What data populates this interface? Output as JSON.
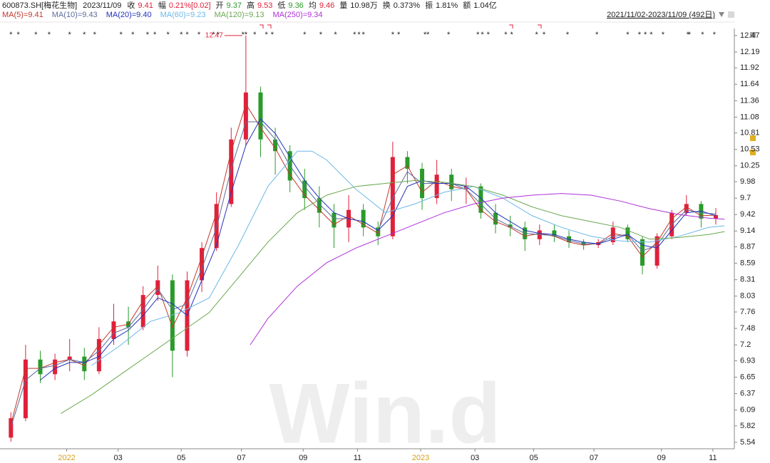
{
  "header": {
    "code": "600873.SH[梅花生物]",
    "date": "2023/11/09",
    "items": [
      {
        "label": "收",
        "value": "9.41",
        "color": "#e0203a"
      },
      {
        "label": "幅",
        "value": "0.21%[0.02]",
        "color": "#e0203a"
      },
      {
        "label": "开",
        "value": "9.37",
        "color": "#2a9a2a"
      },
      {
        "label": "高",
        "value": "9.53",
        "color": "#e0203a"
      },
      {
        "label": "低",
        "value": "9.36",
        "color": "#2a9a2a"
      },
      {
        "label": "均",
        "value": "9.46",
        "color": "#e0203a"
      },
      {
        "label": "量",
        "value": "10.98万",
        "color": "#222"
      },
      {
        "label": "换",
        "value": "0.373%",
        "color": "#222"
      },
      {
        "label": "振",
        "value": "1.81%",
        "color": "#222"
      },
      {
        "label": "额",
        "value": "1.04亿",
        "color": "#222"
      }
    ],
    "range": "2021/11/02-2023/11/09 (492日)"
  },
  "chart_data": {
    "type": "candlestick",
    "up_color": "#e0203a",
    "down_color": "#2a9a2a",
    "x": [
      5,
      15,
      25,
      35,
      45,
      55,
      65,
      75,
      85,
      95,
      105,
      115,
      125,
      135,
      145,
      155,
      165,
      175,
      185,
      195,
      205,
      215,
      225,
      235,
      245,
      255,
      265,
      275,
      285,
      295,
      305,
      315,
      325,
      335,
      345,
      355,
      365,
      375,
      385,
      395,
      405,
      415,
      425,
      435,
      445,
      455,
      465,
      475,
      485
    ],
    "open": [
      5.62,
      5.95,
      6.95,
      6.7,
      6.95,
      7.0,
      6.75,
      7.3,
      7.6,
      7.5,
      8.05,
      8.3,
      7.1,
      8.3,
      8.85,
      9.6,
      10.7,
      11.5,
      10.7,
      10.5,
      10.0,
      9.7,
      9.45,
      9.2,
      9.5,
      9.2,
      9.05,
      10.4,
      10.2,
      9.7,
      10.1,
      9.85,
      9.9,
      9.45,
      9.25,
      9.2,
      9.0,
      9.15,
      9.05,
      8.95,
      8.9,
      8.95,
      9.2,
      9.0,
      8.55,
      9.05,
      9.45,
      9.6,
      9.35
    ],
    "high": [
      6.05,
      7.2,
      7.1,
      7.05,
      7.3,
      7.15,
      7.5,
      7.9,
      7.85,
      8.2,
      8.55,
      8.4,
      8.45,
      8.95,
      9.8,
      10.9,
      12.47,
      11.6,
      10.9,
      10.6,
      10.2,
      9.9,
      9.6,
      9.75,
      9.6,
      9.3,
      10.66,
      10.5,
      10.3,
      10.35,
      10.2,
      10.05,
      9.95,
      9.6,
      9.4,
      9.3,
      9.25,
      9.25,
      9.15,
      9.0,
      9.0,
      9.3,
      9.25,
      9.05,
      9.1,
      9.5,
      9.75,
      9.65,
      9.53
    ],
    "low": [
      5.55,
      5.9,
      6.55,
      6.6,
      6.75,
      6.6,
      6.7,
      7.2,
      7.2,
      7.45,
      7.95,
      6.65,
      7.0,
      8.1,
      8.8,
      9.55,
      10.6,
      10.4,
      10.1,
      9.8,
      9.5,
      9.2,
      8.85,
      8.95,
      9.05,
      8.9,
      9.0,
      9.95,
      9.5,
      9.6,
      9.65,
      9.6,
      9.35,
      9.1,
      9.05,
      8.8,
      8.9,
      8.95,
      8.85,
      8.82,
      8.85,
      8.9,
      8.95,
      8.4,
      8.5,
      9.0,
      9.4,
      9.2,
      9.25
    ],
    "close": [
      5.95,
      6.95,
      6.7,
      6.95,
      7.0,
      6.75,
      7.3,
      7.6,
      7.5,
      8.05,
      8.3,
      7.1,
      8.3,
      8.85,
      9.6,
      10.7,
      11.5,
      10.7,
      10.5,
      10.0,
      9.7,
      9.45,
      9.2,
      9.5,
      9.2,
      9.05,
      10.4,
      10.2,
      9.7,
      10.1,
      9.85,
      9.9,
      9.45,
      9.25,
      9.2,
      9.0,
      9.15,
      9.05,
      8.95,
      8.9,
      8.95,
      9.2,
      9.0,
      8.55,
      9.05,
      9.45,
      9.6,
      9.35,
      9.41
    ],
    "series": [
      {
        "name": "MA(5)=9.41",
        "color": "#c0392b",
        "x": [
          5,
          15,
          25,
          35,
          45,
          55,
          65,
          75,
          85,
          95,
          105,
          115,
          125,
          135,
          145,
          155,
          165,
          175,
          185,
          195,
          205,
          215,
          225,
          235,
          245,
          255,
          265,
          275,
          285,
          295,
          305,
          315,
          325,
          335,
          345,
          355,
          365,
          375,
          385,
          395,
          405,
          415,
          425,
          435,
          445,
          455,
          465,
          475,
          485
        ],
        "values": [
          5.85,
          6.8,
          6.8,
          6.9,
          6.95,
          6.85,
          7.2,
          7.5,
          7.55,
          7.95,
          8.2,
          7.5,
          8.0,
          8.7,
          9.45,
          10.5,
          11.3,
          10.9,
          10.55,
          10.1,
          9.75,
          9.5,
          9.25,
          9.4,
          9.25,
          9.1,
          10.1,
          10.25,
          9.8,
          10.0,
          9.9,
          9.85,
          9.5,
          9.3,
          9.2,
          9.05,
          9.1,
          9.05,
          8.95,
          8.9,
          8.93,
          9.1,
          9.05,
          8.7,
          8.95,
          9.35,
          9.55,
          9.4,
          9.41
        ]
      },
      {
        "name": "MA(10)=9.43",
        "color": "#5d6d9e",
        "x": [
          5,
          15,
          25,
          35,
          45,
          55,
          65,
          75,
          85,
          95,
          105,
          115,
          125,
          135,
          145,
          155,
          165,
          175,
          185,
          195,
          205,
          215,
          225,
          235,
          245,
          255,
          265,
          275,
          285,
          295,
          305,
          315,
          325,
          335,
          345,
          355,
          365,
          375,
          385,
          395,
          405,
          415,
          425,
          435,
          445,
          455,
          465,
          475,
          485
        ],
        "values": [
          5.8,
          6.6,
          6.8,
          6.85,
          6.95,
          6.9,
          7.1,
          7.4,
          7.5,
          7.8,
          8.15,
          7.8,
          7.9,
          8.5,
          9.2,
          10.2,
          11.0,
          11.0,
          10.7,
          10.25,
          9.9,
          9.6,
          9.35,
          9.35,
          9.3,
          9.15,
          9.7,
          10.15,
          9.95,
          9.95,
          9.95,
          9.85,
          9.6,
          9.35,
          9.22,
          9.1,
          9.08,
          9.06,
          8.98,
          8.92,
          8.92,
          9.05,
          9.08,
          8.8,
          8.9,
          9.25,
          9.5,
          9.45,
          9.43
        ]
      },
      {
        "name": "MA(20)=9.40",
        "color": "#2233bb",
        "x": [
          25,
          35,
          45,
          55,
          65,
          75,
          85,
          95,
          105,
          115,
          125,
          135,
          145,
          155,
          165,
          175,
          185,
          195,
          205,
          215,
          225,
          235,
          245,
          255,
          265,
          275,
          285,
          295,
          305,
          315,
          325,
          335,
          345,
          355,
          365,
          375,
          385,
          395,
          405,
          415,
          425,
          435,
          445,
          455,
          465,
          475,
          485
        ],
        "values": [
          6.6,
          6.8,
          6.9,
          6.9,
          7.0,
          7.3,
          7.45,
          7.7,
          8.0,
          7.9,
          7.7,
          8.3,
          8.9,
          9.8,
          10.6,
          11.05,
          10.8,
          10.4,
          10.0,
          9.7,
          9.45,
          9.35,
          9.3,
          9.15,
          9.4,
          9.9,
          10.0,
          9.95,
          9.95,
          9.9,
          9.7,
          9.45,
          9.3,
          9.15,
          9.1,
          9.08,
          9.0,
          8.95,
          8.92,
          9.0,
          9.08,
          8.9,
          8.85,
          9.15,
          9.45,
          9.48,
          9.4
        ]
      },
      {
        "name": "MA(60)=9.23",
        "color": "#6bb8e6",
        "x": [
          60,
          80,
          100,
          120,
          140,
          160,
          180,
          200,
          210,
          220,
          240,
          260,
          280,
          300,
          320,
          340,
          360,
          380,
          400,
          420,
          440,
          460,
          480,
          491
        ],
        "values": [
          6.85,
          7.2,
          7.6,
          7.75,
          8.0,
          8.9,
          9.9,
          10.5,
          10.5,
          10.35,
          9.85,
          9.45,
          9.6,
          9.8,
          9.9,
          9.7,
          9.4,
          9.2,
          9.05,
          8.97,
          8.95,
          9.05,
          9.2,
          9.23
        ]
      },
      {
        "name": "MA(120)=9.13",
        "color": "#6aa84f",
        "x": [
          39,
          60,
          80,
          100,
          120,
          140,
          160,
          180,
          200,
          220,
          240,
          260,
          280,
          300,
          320,
          340,
          360,
          380,
          400,
          420,
          440,
          460,
          480,
          491
        ],
        "values": [
          6.03,
          6.35,
          6.7,
          7.05,
          7.4,
          7.75,
          8.35,
          8.95,
          9.45,
          9.75,
          9.9,
          9.95,
          10.0,
          9.97,
          9.9,
          9.75,
          9.55,
          9.4,
          9.3,
          9.2,
          9.0,
          9.03,
          9.08,
          9.13
        ]
      },
      {
        "name": "MA(250)=9.34",
        "color": "#b030d8",
        "x": [
          168,
          180,
          200,
          220,
          240,
          260,
          280,
          300,
          320,
          340,
          360,
          380,
          400,
          420,
          440,
          460,
          480,
          491
        ],
        "values": [
          7.2,
          7.65,
          8.2,
          8.6,
          8.85,
          9.05,
          9.25,
          9.45,
          9.6,
          9.7,
          9.75,
          9.78,
          9.75,
          9.65,
          9.52,
          9.42,
          9.36,
          9.34
        ]
      }
    ],
    "peak": {
      "x": 164,
      "value": 12.47
    },
    "markers": {
      "symbol": "*",
      "x": [
        5,
        10,
        22,
        31,
        45,
        55,
        62,
        80,
        88,
        98,
        103,
        112,
        121,
        125,
        133,
        143,
        146,
        163,
        165,
        171,
        179,
        183,
        205,
        216,
        226,
        239,
        242,
        245,
        265,
        269,
        287,
        289,
        303,
        323,
        326,
        330,
        342,
        346,
        363,
        368,
        384,
        404,
        425,
        433,
        437,
        441,
        449,
        466,
        467,
        476,
        484
      ]
    },
    "xlim": [
      -2.43,
      495.2
    ],
    "ylim": [
      5.43,
      12.59
    ],
    "yticks": [
      12.47,
      12.19,
      11.92,
      11.64,
      11.36,
      11.08,
      10.81,
      10.53,
      10.25,
      9.98,
      9.7,
      9.42,
      9.14,
      8.87,
      8.59,
      8.31,
      8.03,
      7.76,
      7.48,
      7.2,
      6.93,
      6.65,
      6.37,
      6.09,
      5.82,
      5.54
    ],
    "xticks": [
      {
        "value": 43,
        "label": "2022"
      },
      {
        "value": 78,
        "label": "03"
      },
      {
        "value": 121,
        "label": "05"
      },
      {
        "value": 162,
        "label": "07"
      },
      {
        "value": 204,
        "label": "09"
      },
      {
        "value": 241,
        "label": "11"
      },
      {
        "value": 284,
        "label": "2023"
      },
      {
        "value": 321,
        "label": "03"
      },
      {
        "value": 361,
        "label": "05"
      },
      {
        "value": 402,
        "label": "07"
      },
      {
        "value": 448,
        "label": "09"
      },
      {
        "value": 483,
        "label": "11"
      }
    ],
    "year_tick_color": "#d4a017",
    "watermark": "Win.d"
  }
}
